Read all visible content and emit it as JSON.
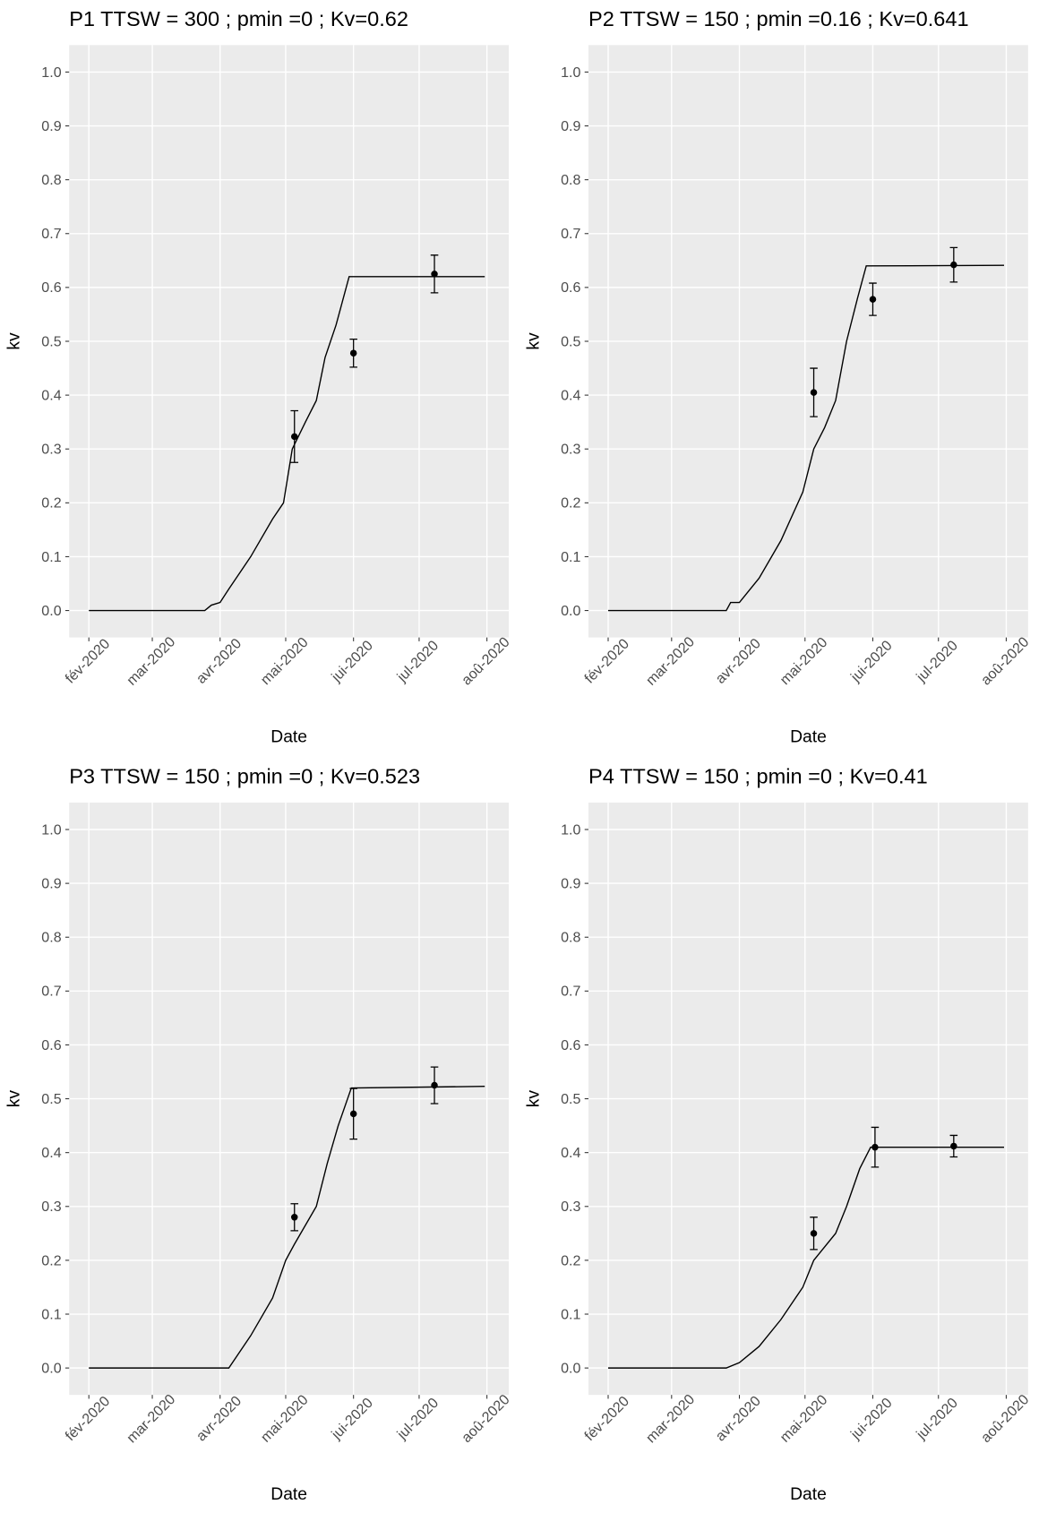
{
  "chart_data": [
    {
      "type": "line",
      "title": "P1 TTSW = 300 ; pmin =0 ; Kv=0.62",
      "x_label": "Date",
      "y_label": "kv",
      "xlim": [
        "2020-01-23",
        "2020-08-11"
      ],
      "xticks": [
        {
          "value": "2020-02-01",
          "label": "fév-2020"
        },
        {
          "value": "2020-03-01",
          "label": "mar-2020"
        },
        {
          "value": "2020-04-01",
          "label": "avr-2020"
        },
        {
          "value": "2020-05-01",
          "label": "mai-2020"
        },
        {
          "value": "2020-06-01",
          "label": "jui-2020"
        },
        {
          "value": "2020-07-01",
          "label": "jul-2020"
        },
        {
          "value": "2020-08-01",
          "label": "aoû-2020"
        }
      ],
      "ylim": [
        -0.05,
        1.05
      ],
      "yticks": [
        {
          "value": 0,
          "label": "0.0"
        },
        0.1,
        0.2,
        0.3,
        0.4,
        0.5,
        0.6,
        0.7,
        0.8,
        0.9,
        {
          "value": 1,
          "label": "1.0"
        }
      ],
      "grid": true,
      "series": [
        {
          "type": "line",
          "color": "#000000",
          "x": [
            "2020-02-01",
            "2020-03-25",
            "2020-03-28",
            "2020-04-01",
            "2020-04-05",
            "2020-04-15",
            "2020-04-25",
            "2020-04-30",
            "2020-05-04",
            "2020-05-10",
            "2020-05-15",
            "2020-05-19",
            "2020-05-24",
            "2020-05-30",
            "2020-07-31"
          ],
          "values": [
            0,
            0,
            0.01,
            0.015,
            0.04,
            0.1,
            0.17,
            0.2,
            0.3,
            0.35,
            0.39,
            0.47,
            0.53,
            0.62,
            0.62
          ]
        },
        {
          "type": "errorbar",
          "color": "#000000",
          "x": [
            "2020-05-05",
            "2020-06-01",
            "2020-07-08"
          ],
          "values": [
            0.323,
            0.478,
            0.625
          ],
          "errors": [
            0.048,
            0.026,
            0.035
          ]
        }
      ]
    },
    {
      "type": "line",
      "title": "P2 TTSW = 150 ; pmin =0.16 ; Kv=0.641",
      "x_label": "Date",
      "y_label": "kv",
      "xlim": [
        "2020-01-23",
        "2020-08-11"
      ],
      "xticks": [
        {
          "value": "2020-02-01",
          "label": "fév-2020"
        },
        {
          "value": "2020-03-01",
          "label": "mar-2020"
        },
        {
          "value": "2020-04-01",
          "label": "avr-2020"
        },
        {
          "value": "2020-05-01",
          "label": "mai-2020"
        },
        {
          "value": "2020-06-01",
          "label": "jui-2020"
        },
        {
          "value": "2020-07-01",
          "label": "jul-2020"
        },
        {
          "value": "2020-08-01",
          "label": "aoû-2020"
        }
      ],
      "ylim": [
        -0.05,
        1.05
      ],
      "yticks": [
        {
          "value": 0,
          "label": "0.0"
        },
        0.1,
        0.2,
        0.3,
        0.4,
        0.5,
        0.6,
        0.7,
        0.8,
        0.9,
        {
          "value": 1,
          "label": "1.0"
        }
      ],
      "grid": true,
      "series": [
        {
          "type": "line",
          "color": "#000000",
          "x": [
            "2020-02-01",
            "2020-03-26",
            "2020-03-28",
            "2020-04-01",
            "2020-04-10",
            "2020-04-20",
            "2020-04-30",
            "2020-05-05",
            "2020-05-10",
            "2020-05-15",
            "2020-05-20",
            "2020-05-25",
            "2020-05-29",
            "2020-07-31"
          ],
          "values": [
            0,
            0,
            0.015,
            0.015,
            0.06,
            0.13,
            0.22,
            0.3,
            0.34,
            0.39,
            0.5,
            0.58,
            0.64,
            0.641
          ]
        },
        {
          "type": "errorbar",
          "color": "#000000",
          "x": [
            "2020-05-05",
            "2020-06-01",
            "2020-07-08"
          ],
          "values": [
            0.405,
            0.578,
            0.642
          ],
          "errors": [
            0.045,
            0.03,
            0.032
          ]
        }
      ]
    },
    {
      "type": "line",
      "title": "P3 TTSW = 150 ; pmin =0 ; Kv=0.523",
      "x_label": "Date",
      "y_label": "kv",
      "xlim": [
        "2020-01-23",
        "2020-08-11"
      ],
      "xticks": [
        {
          "value": "2020-02-01",
          "label": "fév-2020"
        },
        {
          "value": "2020-03-01",
          "label": "mar-2020"
        },
        {
          "value": "2020-04-01",
          "label": "avr-2020"
        },
        {
          "value": "2020-05-01",
          "label": "mai-2020"
        },
        {
          "value": "2020-06-01",
          "label": "jui-2020"
        },
        {
          "value": "2020-07-01",
          "label": "jul-2020"
        },
        {
          "value": "2020-08-01",
          "label": "aoû-2020"
        }
      ],
      "ylim": [
        -0.05,
        1.05
      ],
      "yticks": [
        {
          "value": 0,
          "label": "0.0"
        },
        0.1,
        0.2,
        0.3,
        0.4,
        0.5,
        0.6,
        0.7,
        0.8,
        0.9,
        {
          "value": 1,
          "label": "1.0"
        }
      ],
      "grid": true,
      "series": [
        {
          "type": "line",
          "color": "#000000",
          "x": [
            "2020-02-01",
            "2020-04-05",
            "2020-04-15",
            "2020-04-25",
            "2020-05-01",
            "2020-05-05",
            "2020-05-15",
            "2020-05-20",
            "2020-05-25",
            "2020-05-31",
            "2020-07-31"
          ],
          "values": [
            0,
            0,
            0.06,
            0.13,
            0.2,
            0.23,
            0.3,
            0.38,
            0.45,
            0.52,
            0.523
          ]
        },
        {
          "type": "errorbar",
          "color": "#000000",
          "x": [
            "2020-05-05",
            "2020-06-01",
            "2020-07-08"
          ],
          "values": [
            0.28,
            0.472,
            0.525
          ],
          "errors": [
            0.025,
            0.047,
            0.034
          ]
        }
      ]
    },
    {
      "type": "line",
      "title": "P4 TTSW = 150 ; pmin =0 ; Kv=0.41",
      "x_label": "Date",
      "y_label": "kv",
      "xlim": [
        "2020-01-23",
        "2020-08-11"
      ],
      "xticks": [
        {
          "value": "2020-02-01",
          "label": "fév-2020"
        },
        {
          "value": "2020-03-01",
          "label": "mar-2020"
        },
        {
          "value": "2020-04-01",
          "label": "avr-2020"
        },
        {
          "value": "2020-05-01",
          "label": "mai-2020"
        },
        {
          "value": "2020-06-01",
          "label": "jui-2020"
        },
        {
          "value": "2020-07-01",
          "label": "jul-2020"
        },
        {
          "value": "2020-08-01",
          "label": "aoû-2020"
        }
      ],
      "ylim": [
        -0.05,
        1.05
      ],
      "yticks": [
        {
          "value": 0,
          "label": "0.0"
        },
        0.1,
        0.2,
        0.3,
        0.4,
        0.5,
        0.6,
        0.7,
        0.8,
        0.9,
        {
          "value": 1,
          "label": "1.0"
        }
      ],
      "grid": true,
      "series": [
        {
          "type": "line",
          "color": "#000000",
          "x": [
            "2020-02-01",
            "2020-03-26",
            "2020-04-01",
            "2020-04-10",
            "2020-04-20",
            "2020-04-30",
            "2020-05-05",
            "2020-05-15",
            "2020-05-20",
            "2020-05-26",
            "2020-05-31",
            "2020-07-31"
          ],
          "values": [
            0,
            0,
            0.01,
            0.04,
            0.09,
            0.15,
            0.2,
            0.25,
            0.3,
            0.37,
            0.41,
            0.41
          ]
        },
        {
          "type": "errorbar",
          "color": "#000000",
          "x": [
            "2020-05-05",
            "2020-06-02",
            "2020-07-08"
          ],
          "values": [
            0.25,
            0.41,
            0.412
          ],
          "errors": [
            0.03,
            0.037,
            0.02
          ]
        }
      ]
    }
  ]
}
